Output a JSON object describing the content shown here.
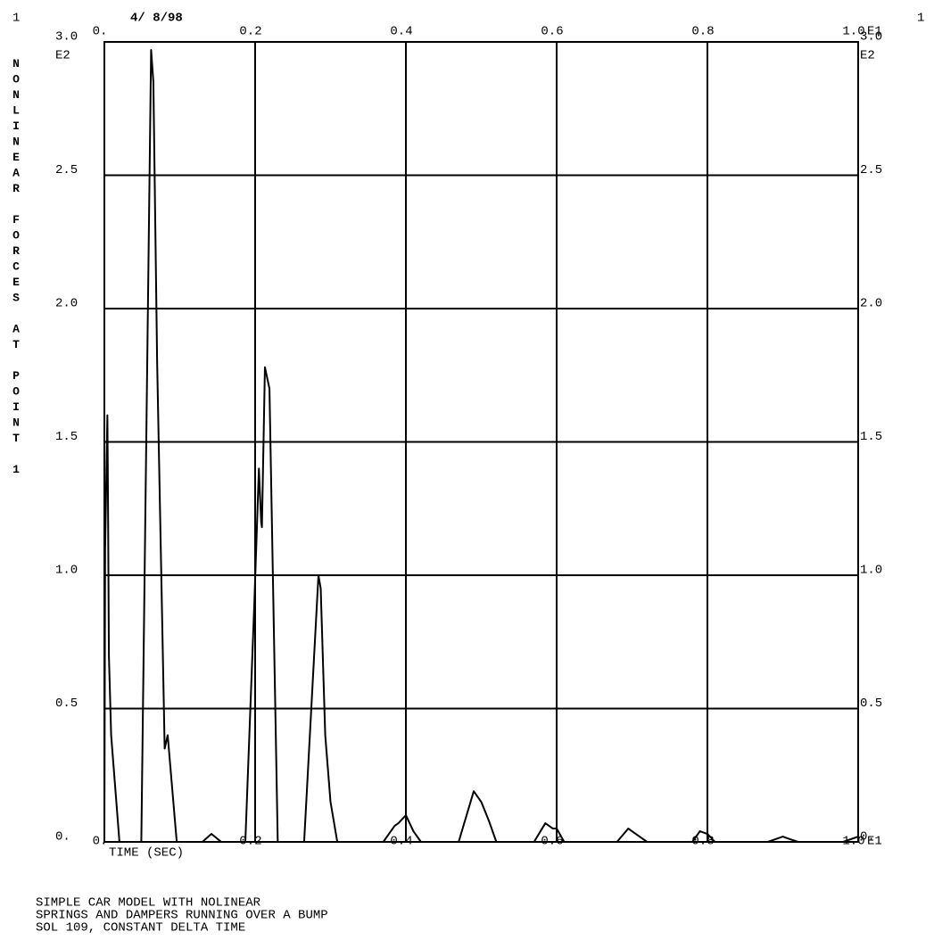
{
  "chart_data": {
    "type": "line",
    "page_number": "1",
    "page_number_right": "1",
    "date": "4/ 8/98",
    "ylabel": "NONLINEAR FORCES AT POINT 1",
    "xlabel": "TIME (SEC)",
    "x_exponent": "E1",
    "y_exponent": "E2",
    "caption": [
      "SIMPLE CAR MODEL WITH NOLINEAR",
      "SPRINGS AND DAMPERS RUNNING OVER A BUMP",
      "SOL 109, CONSTANT DELTA TIME"
    ],
    "xlim": [
      0,
      1
    ],
    "ylim": [
      0,
      3
    ],
    "xticks": [
      {
        "value": 0,
        "label": "0."
      },
      0.2,
      0.4,
      0.6,
      0.8,
      {
        "value": 1,
        "label": "1.0"
      }
    ],
    "yticks": [
      {
        "value": 0,
        "label": "0."
      },
      0.5,
      {
        "value": 1,
        "label": "1.0"
      },
      1.5,
      {
        "value": 2,
        "label": "2.0"
      },
      2.5,
      {
        "value": 3,
        "label": "3.0"
      }
    ],
    "grid": true,
    "series": [
      {
        "color": "#000000",
        "x": [
          0,
          0.001,
          0.004,
          0.005,
          0.006,
          0.009,
          0.02,
          0.049,
          0.062,
          0.065,
          0.07,
          0.08,
          0.084,
          0.087,
          0.096,
          0.13,
          0.142,
          0.155,
          0.187,
          0.199,
          0.205,
          0.208,
          0.209,
          0.213,
          0.219,
          0.23,
          0.265,
          0.284,
          0.287,
          0.293,
          0.3,
          0.309,
          0.37,
          0.385,
          0.39,
          0.4,
          0.41,
          0.42,
          0.47,
          0.49,
          0.5,
          0.51,
          0.52,
          0.57,
          0.585,
          0.595,
          0.6,
          0.61,
          0.68,
          0.695,
          0.705,
          0.72,
          0.78,
          0.79,
          0.8,
          0.81,
          0.88,
          0.89,
          0.9,
          0.91,
          0.92,
          0.98,
          1.0
        ],
        "values": [
          0,
          1.1,
          1.6,
          1.2,
          0.7,
          0.4,
          0,
          0,
          2.97,
          2.85,
          1.8,
          0.35,
          0.4,
          0.3,
          0,
          0,
          0.03,
          0,
          0,
          0.9,
          1.4,
          1.2,
          1.18,
          1.78,
          1.7,
          0,
          0,
          1.0,
          0.95,
          0.4,
          0.15,
          0,
          0,
          0.06,
          0.07,
          0.1,
          0.04,
          0,
          0,
          0.19,
          0.15,
          0.08,
          0,
          0,
          0.07,
          0.05,
          0.05,
          0,
          0,
          0.05,
          0.03,
          0,
          0,
          0.04,
          0.03,
          0,
          0,
          0.01,
          0.02,
          0.01,
          0,
          0,
          0.02
        ]
      }
    ]
  }
}
